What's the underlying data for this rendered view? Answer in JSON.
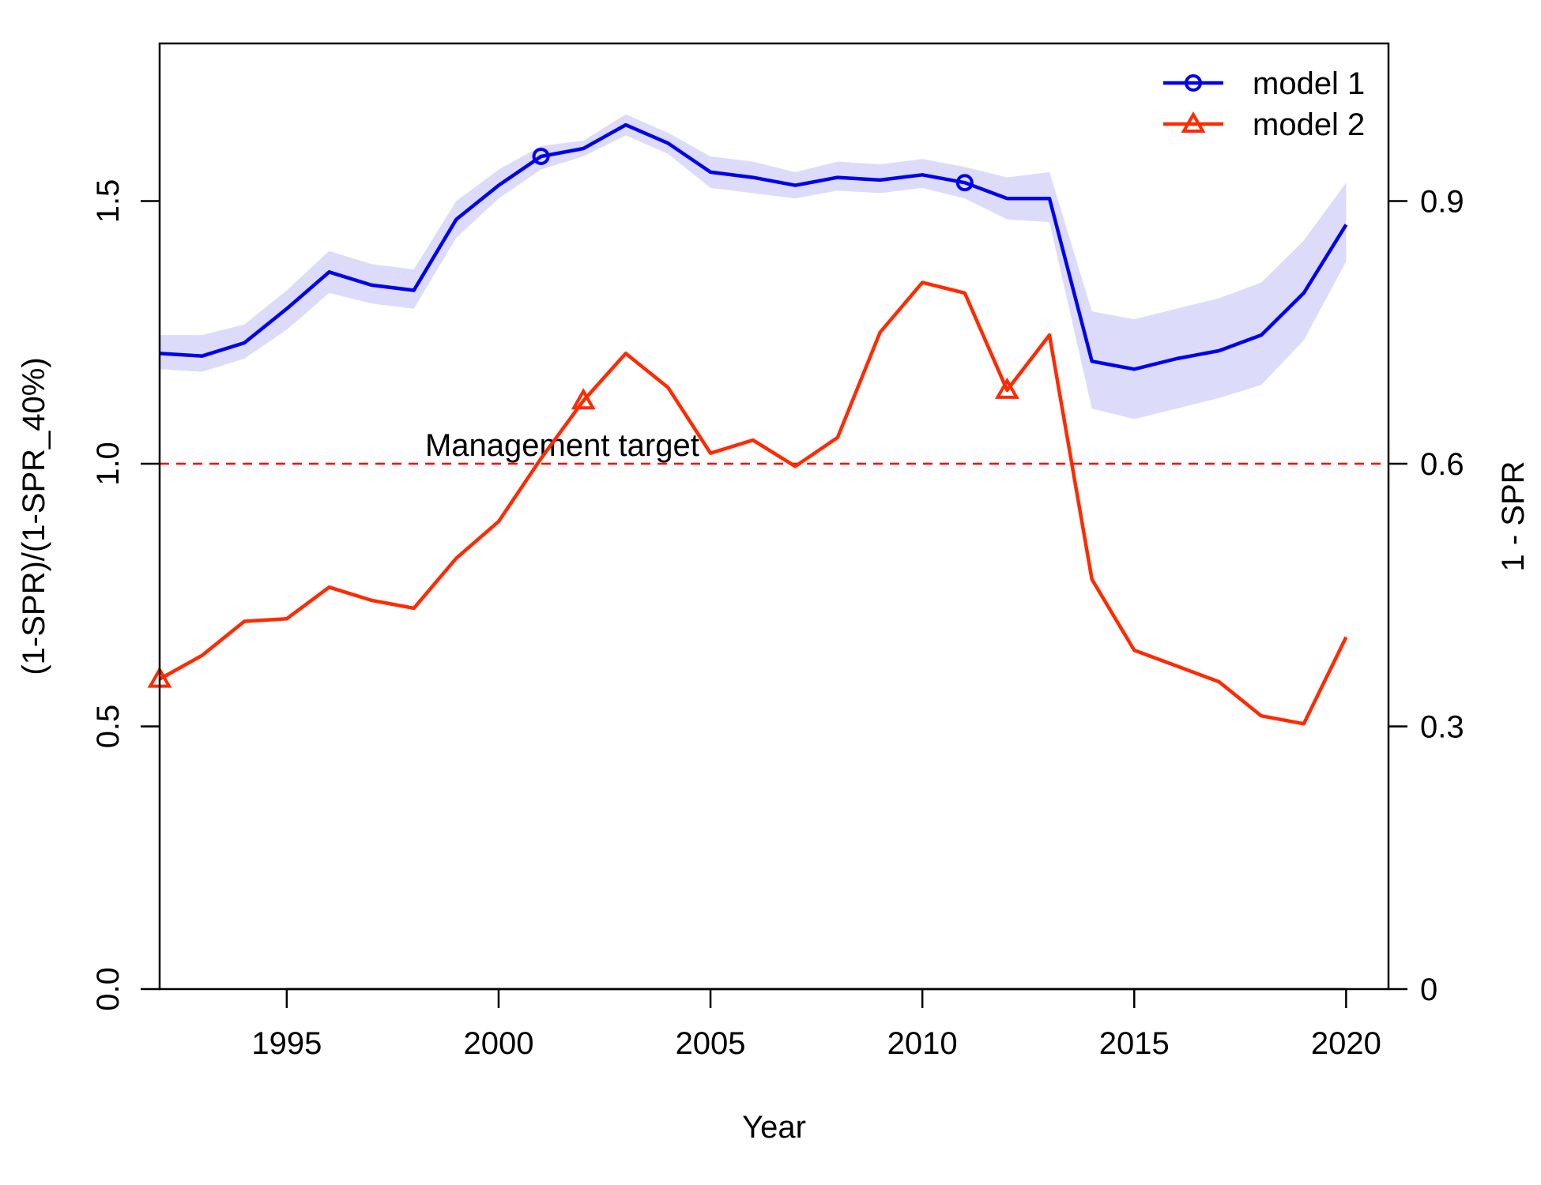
{
  "chart_data": {
    "type": "line",
    "xlabel": "Year",
    "ylabel": "(1-SPR)/(1-SPR_40%)",
    "ylabel_right": "1 - SPR",
    "xlim": [
      1992,
      2021
    ],
    "ylim": [
      0,
      1.8
    ],
    "x_ticks": [
      "1995",
      "2000",
      "2005",
      "2010",
      "2015",
      "2020"
    ],
    "y_ticks": [
      "0.0",
      "0.5",
      "1.0",
      "1.5"
    ],
    "y_ticks_right": [
      "0",
      "0.3",
      "0.6",
      "0.9"
    ],
    "y_right_to_left_factor": 0.6,
    "grid": false,
    "legend_position": "top-right",
    "reference_line": {
      "value": 1.0,
      "label": "Management target",
      "color": "#ff0000",
      "style": "dashed"
    },
    "x": [
      1992,
      1993,
      1994,
      1995,
      1996,
      1997,
      1998,
      1999,
      2000,
      2001,
      2002,
      2003,
      2004,
      2005,
      2006,
      2007,
      2008,
      2009,
      2010,
      2011,
      2012,
      2013,
      2014,
      2015,
      2016,
      2017,
      2018,
      2019,
      2020
    ],
    "series": [
      {
        "name": "model 1",
        "color": "#0000ee",
        "band_color": "#dcdcfa",
        "marker": "circle",
        "marker_years": [
          2001,
          2011
        ],
        "values": [
          1.21,
          1.205,
          1.23,
          1.295,
          1.365,
          1.34,
          1.33,
          1.465,
          1.53,
          1.585,
          1.6,
          1.645,
          1.61,
          1.555,
          1.545,
          1.53,
          1.545,
          1.54,
          1.55,
          1.535,
          1.505,
          1.505,
          1.195,
          1.18,
          1.2,
          1.215,
          1.245,
          1.325,
          1.455
        ],
        "lower": [
          1.18,
          1.175,
          1.2,
          1.255,
          1.325,
          1.305,
          1.295,
          1.43,
          1.505,
          1.56,
          1.585,
          1.625,
          1.59,
          1.525,
          1.515,
          1.505,
          1.52,
          1.515,
          1.525,
          1.505,
          1.465,
          1.46,
          1.105,
          1.085,
          1.105,
          1.125,
          1.15,
          1.235,
          1.385
        ],
        "upper": [
          1.245,
          1.245,
          1.265,
          1.33,
          1.405,
          1.38,
          1.37,
          1.5,
          1.56,
          1.605,
          1.615,
          1.665,
          1.63,
          1.585,
          1.575,
          1.555,
          1.575,
          1.57,
          1.58,
          1.565,
          1.545,
          1.555,
          1.29,
          1.275,
          1.295,
          1.315,
          1.345,
          1.425,
          1.535
        ]
      },
      {
        "name": "model 2",
        "color": "#ff2a00",
        "marker": "triangle",
        "marker_years": [
          1992,
          2002,
          2012
        ],
        "values": [
          0.59,
          0.635,
          0.7,
          0.705,
          0.765,
          0.74,
          0.725,
          0.82,
          0.89,
          1.01,
          1.12,
          1.21,
          1.145,
          1.02,
          1.045,
          0.995,
          1.05,
          1.25,
          1.345,
          1.325,
          1.14,
          1.245,
          0.78,
          0.645,
          0.615,
          0.585,
          0.52,
          0.505,
          0.67
        ]
      }
    ]
  }
}
